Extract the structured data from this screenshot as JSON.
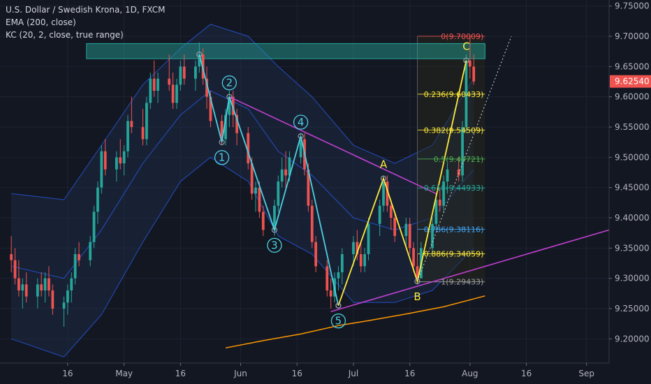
{
  "header": {
    "title": "U.S. Dollar / Swedish Krona, 1D, FXCM",
    "indicator_1": "EMA (200, close)",
    "indicator_2": "KC (20, 2, close, true range)"
  },
  "colors": {
    "background": "#131722",
    "up": "#26a69a",
    "down": "#ef5350",
    "ema": "#ff9800",
    "kc_line": "#2962ff",
    "kc_fill": "#1e2a44",
    "impulse_wave": "#4dd0e1",
    "abc_wave": "#ffeb3b",
    "trendline": "#c040d0",
    "resistance_zone": "#26a69a",
    "price_tag": "#ef5350"
  },
  "chart_data": {
    "type": "candlestick",
    "symbol": "U.S. Dollar / Swedish Krona",
    "interval": "1D",
    "source": "FXCM",
    "ylim": [
      9.16,
      9.76
    ],
    "xlim": [
      "2019-03-29",
      "2019-09-07"
    ],
    "y_ticks": [
      "9.20000",
      "9.25000",
      "9.30000",
      "9.35000",
      "9.40000",
      "9.45000",
      "9.50000",
      "9.55000",
      "9.60000",
      "9.65000",
      "9.70000",
      "9.75000"
    ],
    "x_ticks": [
      {
        "date": "2019-04-16",
        "label": "16"
      },
      {
        "date": "2019-05-01",
        "label": "May"
      },
      {
        "date": "2019-05-16",
        "label": "16"
      },
      {
        "date": "2019-06-01",
        "label": "Jun"
      },
      {
        "date": "2019-06-16",
        "label": "16"
      },
      {
        "date": "2019-07-01",
        "label": "Jul"
      },
      {
        "date": "2019-07-16",
        "label": "16"
      },
      {
        "date": "2019-08-01",
        "label": "Aug"
      },
      {
        "date": "2019-08-16",
        "label": "16"
      },
      {
        "date": "2019-09-01",
        "label": "Sep"
      }
    ],
    "last_price": "9.62540",
    "last_price_value": 9.6254,
    "ohlc": [
      [
        "2019-04-01",
        9.34,
        9.37,
        9.31,
        9.33
      ],
      [
        "2019-04-02",
        9.33,
        9.35,
        9.29,
        9.3
      ],
      [
        "2019-04-03",
        9.3,
        9.33,
        9.27,
        9.28
      ],
      [
        "2019-04-04",
        9.28,
        9.3,
        9.25,
        9.29
      ],
      [
        "2019-04-05",
        9.29,
        9.31,
        9.26,
        9.27
      ],
      [
        "2019-04-08",
        9.27,
        9.3,
        9.25,
        9.29
      ],
      [
        "2019-04-09",
        9.29,
        9.31,
        9.27,
        9.28
      ],
      [
        "2019-04-10",
        9.28,
        9.31,
        9.26,
        9.3
      ],
      [
        "2019-04-11",
        9.3,
        9.32,
        9.27,
        9.28
      ],
      [
        "2019-04-12",
        9.28,
        9.29,
        9.24,
        9.25
      ],
      [
        "2019-04-15",
        9.25,
        9.27,
        9.22,
        9.26
      ],
      [
        "2019-04-16",
        9.26,
        9.29,
        9.24,
        9.28
      ],
      [
        "2019-04-17",
        9.28,
        9.31,
        9.26,
        9.3
      ],
      [
        "2019-04-18",
        9.3,
        9.35,
        9.29,
        9.34
      ],
      [
        "2019-04-19",
        9.34,
        9.36,
        9.32,
        9.33
      ],
      [
        "2019-04-22",
        9.33,
        9.37,
        9.32,
        9.36
      ],
      [
        "2019-04-23",
        9.36,
        9.42,
        9.35,
        9.41
      ],
      [
        "2019-04-24",
        9.41,
        9.46,
        9.39,
        9.45
      ],
      [
        "2019-04-25",
        9.45,
        9.52,
        9.44,
        9.51
      ],
      [
        "2019-04-26",
        9.51,
        9.53,
        9.47,
        9.48
      ],
      [
        "2019-04-29",
        9.48,
        9.51,
        9.46,
        9.5
      ],
      [
        "2019-04-30",
        9.5,
        9.53,
        9.48,
        9.49
      ],
      [
        "2019-05-01",
        9.49,
        9.52,
        9.47,
        9.51
      ],
      [
        "2019-05-02",
        9.51,
        9.57,
        9.5,
        9.56
      ],
      [
        "2019-05-03",
        9.56,
        9.6,
        9.54,
        9.55
      ],
      [
        "2019-05-06",
        9.55,
        9.58,
        9.52,
        9.53
      ],
      [
        "2019-05-07",
        9.53,
        9.6,
        9.52,
        9.59
      ],
      [
        "2019-05-08",
        9.59,
        9.64,
        9.58,
        9.63
      ],
      [
        "2019-05-09",
        9.63,
        9.66,
        9.6,
        9.61
      ],
      [
        "2019-05-10",
        9.61,
        9.64,
        9.59,
        9.63
      ],
      [
        "2019-05-13",
        9.63,
        9.67,
        9.61,
        9.62
      ],
      [
        "2019-05-14",
        9.62,
        9.64,
        9.58,
        9.59
      ],
      [
        "2019-05-15",
        9.59,
        9.63,
        9.58,
        9.62
      ],
      [
        "2019-05-16",
        9.62,
        9.66,
        9.61,
        9.65
      ],
      [
        "2019-05-17",
        9.65,
        9.67,
        9.62,
        9.63
      ],
      [
        "2019-05-20",
        9.63,
        9.66,
        9.61,
        9.65
      ],
      [
        "2019-05-21",
        9.65,
        9.69,
        9.64,
        9.67
      ],
      [
        "2019-05-22",
        9.67,
        9.68,
        9.62,
        9.63
      ],
      [
        "2019-05-23",
        9.63,
        9.65,
        9.58,
        9.6
      ],
      [
        "2019-05-24",
        9.6,
        9.61,
        9.55,
        9.56
      ],
      [
        "2019-05-27",
        9.56,
        9.57,
        9.52,
        9.53
      ],
      [
        "2019-05-28",
        9.53,
        9.58,
        9.52,
        9.57
      ],
      [
        "2019-05-29",
        9.57,
        9.61,
        9.55,
        9.6
      ],
      [
        "2019-05-30",
        9.6,
        9.61,
        9.55,
        9.57
      ],
      [
        "2019-05-31",
        9.57,
        9.58,
        9.52,
        9.54
      ],
      [
        "2019-06-03",
        9.54,
        9.55,
        9.48,
        9.49
      ],
      [
        "2019-06-04",
        9.49,
        9.5,
        9.43,
        9.44
      ],
      [
        "2019-06-05",
        9.44,
        9.46,
        9.41,
        9.45
      ],
      [
        "2019-06-06",
        9.45,
        9.46,
        9.4,
        9.41
      ],
      [
        "2019-06-07",
        9.41,
        9.42,
        9.37,
        9.38
      ],
      [
        "2019-06-10",
        9.38,
        9.43,
        9.37,
        9.42
      ],
      [
        "2019-06-11",
        9.42,
        9.47,
        9.41,
        9.46
      ],
      [
        "2019-06-12",
        9.46,
        9.5,
        9.45,
        9.48
      ],
      [
        "2019-06-13",
        9.48,
        9.51,
        9.45,
        9.47
      ],
      [
        "2019-06-14",
        9.47,
        9.51,
        9.46,
        9.5
      ],
      [
        "2019-06-17",
        9.5,
        9.54,
        9.49,
        9.53
      ],
      [
        "2019-06-18",
        9.53,
        9.54,
        9.47,
        9.48
      ],
      [
        "2019-06-19",
        9.48,
        9.49,
        9.41,
        9.42
      ],
      [
        "2019-06-20",
        9.42,
        9.43,
        9.35,
        9.36
      ],
      [
        "2019-06-21",
        9.36,
        9.37,
        9.31,
        9.32
      ],
      [
        "2019-06-24",
        9.32,
        9.33,
        9.27,
        9.28
      ],
      [
        "2019-06-25",
        9.28,
        9.3,
        9.25,
        9.27
      ],
      [
        "2019-06-26",
        9.27,
        9.31,
        9.26,
        9.3
      ],
      [
        "2019-06-27",
        9.3,
        9.32,
        9.28,
        9.31
      ],
      [
        "2019-06-28",
        9.31,
        9.35,
        9.29,
        9.34
      ],
      [
        "2019-07-01",
        9.34,
        9.37,
        9.32,
        9.36
      ],
      [
        "2019-07-02",
        9.36,
        9.38,
        9.33,
        9.34
      ],
      [
        "2019-07-03",
        9.34,
        9.36,
        9.31,
        9.32
      ],
      [
        "2019-07-04",
        9.32,
        9.35,
        9.31,
        9.34
      ],
      [
        "2019-07-05",
        9.34,
        9.4,
        9.33,
        9.39
      ],
      [
        "2019-07-08",
        9.39,
        9.43,
        9.37,
        9.42
      ],
      [
        "2019-07-09",
        9.42,
        9.47,
        9.41,
        9.46
      ],
      [
        "2019-07-10",
        9.46,
        9.47,
        9.41,
        9.42
      ],
      [
        "2019-07-11",
        9.42,
        9.43,
        9.38,
        9.4
      ],
      [
        "2019-07-12",
        9.4,
        9.41,
        9.36,
        9.37
      ],
      [
        "2019-07-15",
        9.37,
        9.4,
        9.35,
        9.39
      ],
      [
        "2019-07-16",
        9.39,
        9.4,
        9.34,
        9.35
      ],
      [
        "2019-07-17",
        9.35,
        9.36,
        9.31,
        9.32
      ],
      [
        "2019-07-18",
        9.32,
        9.34,
        9.29,
        9.3
      ],
      [
        "2019-07-19",
        9.3,
        9.36,
        9.3,
        9.35
      ],
      [
        "2019-07-22",
        9.35,
        9.4,
        9.34,
        9.39
      ],
      [
        "2019-07-23",
        9.39,
        9.44,
        9.38,
        9.43
      ],
      [
        "2019-07-24",
        9.43,
        9.45,
        9.41,
        9.42
      ],
      [
        "2019-07-25",
        9.42,
        9.47,
        9.41,
        9.46
      ],
      [
        "2019-07-26",
        9.46,
        9.49,
        9.44,
        9.48
      ],
      [
        "2019-07-29",
        9.48,
        9.5,
        9.46,
        9.47
      ],
      [
        "2019-07-30",
        9.47,
        9.56,
        9.46,
        9.55
      ],
      [
        "2019-07-31",
        9.55,
        9.67,
        9.54,
        9.66
      ],
      [
        "2019-08-01",
        9.66,
        9.7,
        9.63,
        9.65
      ],
      [
        "2019-08-02",
        9.65,
        9.67,
        9.62,
        9.6254
      ]
    ],
    "ema_200": [
      [
        "2019-05-28",
        9.185
      ],
      [
        "2019-06-07",
        9.197
      ],
      [
        "2019-06-17",
        9.208
      ],
      [
        "2019-06-27",
        9.222
      ],
      [
        "2019-07-05",
        9.23
      ],
      [
        "2019-07-15",
        9.241
      ],
      [
        "2019-07-25",
        9.253
      ],
      [
        "2019-08-05",
        9.271
      ]
    ],
    "keltner": {
      "upper": [
        [
          "2019-04-01",
          9.44
        ],
        [
          "2019-04-15",
          9.43
        ],
        [
          "2019-04-25",
          9.52
        ],
        [
          "2019-05-06",
          9.62
        ],
        [
          "2019-05-16",
          9.68
        ],
        [
          "2019-05-24",
          9.72
        ],
        [
          "2019-06-03",
          9.7
        ],
        [
          "2019-06-11",
          9.65
        ],
        [
          "2019-06-20",
          9.6
        ],
        [
          "2019-07-01",
          9.52
        ],
        [
          "2019-07-12",
          9.49
        ],
        [
          "2019-07-22",
          9.52
        ],
        [
          "2019-08-02",
          9.63
        ]
      ],
      "middle": [
        [
          "2019-04-01",
          9.32
        ],
        [
          "2019-04-15",
          9.3
        ],
        [
          "2019-04-25",
          9.38
        ],
        [
          "2019-05-06",
          9.49
        ],
        [
          "2019-05-16",
          9.57
        ],
        [
          "2019-05-24",
          9.61
        ],
        [
          "2019-06-03",
          9.58
        ],
        [
          "2019-06-11",
          9.51
        ],
        [
          "2019-06-20",
          9.47
        ],
        [
          "2019-07-01",
          9.4
        ],
        [
          "2019-07-12",
          9.38
        ],
        [
          "2019-07-22",
          9.4
        ],
        [
          "2019-08-02",
          9.48
        ]
      ],
      "lower": [
        [
          "2019-04-01",
          9.2
        ],
        [
          "2019-04-15",
          9.17
        ],
        [
          "2019-04-25",
          9.24
        ],
        [
          "2019-05-06",
          9.36
        ],
        [
          "2019-05-16",
          9.46
        ],
        [
          "2019-05-24",
          9.5
        ],
        [
          "2019-06-03",
          9.46
        ],
        [
          "2019-06-11",
          9.37
        ],
        [
          "2019-06-20",
          9.34
        ],
        [
          "2019-07-01",
          9.26
        ],
        [
          "2019-07-12",
          9.26
        ],
        [
          "2019-07-22",
          9.28
        ],
        [
          "2019-08-02",
          9.35
        ]
      ]
    },
    "resistance_zone": {
      "x0": "2019-04-21",
      "x1": "2019-08-05",
      "y0": 9.663,
      "y1": 9.688
    },
    "fibonacci": {
      "x0": "2019-07-18",
      "x1": "2019-08-05",
      "levels": [
        {
          "label": "0(9.70009)",
          "value": 9.70009,
          "color": "#ef5350"
        },
        {
          "label": "0.236(9.60433)",
          "value": 9.60433,
          "color": "#ffeb3b"
        },
        {
          "label": "0.382(9.54509)",
          "value": 9.54509,
          "color": "#ffeb3b"
        },
        {
          "label": "0.5(9.49721)",
          "value": 9.49721,
          "color": "#4caf50"
        },
        {
          "label": "0.618(9.44933)",
          "value": 9.44933,
          "color": "#26a69a"
        },
        {
          "label": "0.786(9.38116)",
          "value": 9.38116,
          "color": "#42a5f5"
        },
        {
          "label": "0.886(9.34059)",
          "value": 9.34059,
          "color": "#ffeb3b"
        },
        {
          "label": "1(9.29433)",
          "value": 9.29433,
          "color": "#9e9e9e"
        }
      ]
    },
    "impulse_wave": [
      {
        "label": "",
        "date": "2019-05-21",
        "price": 9.67
      },
      {
        "label": "1",
        "date": "2019-05-27",
        "price": 9.525
      },
      {
        "label": "2",
        "date": "2019-05-29",
        "price": 9.6
      },
      {
        "label": "3",
        "date": "2019-06-10",
        "price": 9.38
      },
      {
        "label": "4",
        "date": "2019-06-17",
        "price": 9.535
      },
      {
        "label": "5",
        "date": "2019-06-27",
        "price": 9.255
      }
    ],
    "abc_wave": [
      {
        "label": "",
        "date": "2019-06-27",
        "price": 9.255
      },
      {
        "label": "A",
        "date": "2019-07-09",
        "price": 9.465
      },
      {
        "label": "B",
        "date": "2019-07-18",
        "price": 9.295
      },
      {
        "label": "C",
        "date": "2019-07-31",
        "price": 9.66
      }
    ],
    "trendlines": [
      {
        "start": [
          "2019-05-29",
          9.6
        ],
        "end": [
          "2019-07-23",
          9.44
        ]
      },
      {
        "start": [
          "2019-06-25",
          9.245
        ],
        "end": [
          "2019-09-07",
          9.38
        ]
      }
    ],
    "projection_line": {
      "start": [
        "2019-07-18",
        9.295
      ],
      "end": [
        "2019-08-12",
        9.7
      ]
    }
  }
}
